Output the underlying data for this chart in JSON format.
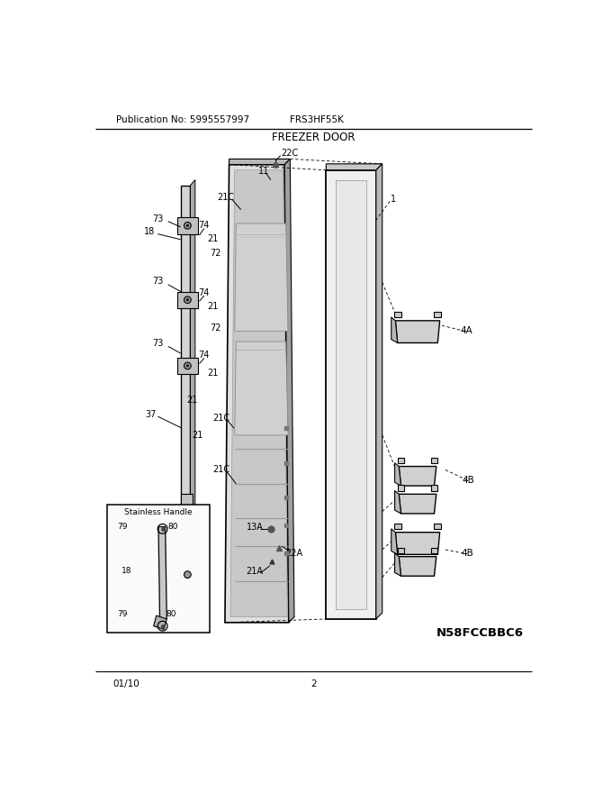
{
  "title": "FREEZER DOOR",
  "pub_no": "Publication No: 5995557997",
  "model": "FRS3HF55K",
  "date": "01/10",
  "page": "2",
  "part_id": "N58FCCBBC6",
  "bg_color": "#ffffff",
  "lc": "#000000",
  "gray_light": "#d8d8d8",
  "gray_med": "#bbbbbb",
  "gray_dark": "#888888"
}
